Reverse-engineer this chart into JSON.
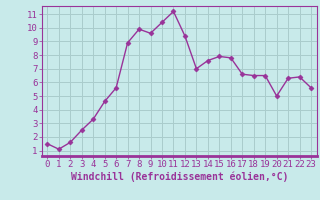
{
  "x": [
    0,
    1,
    2,
    3,
    4,
    5,
    6,
    7,
    8,
    9,
    10,
    11,
    12,
    13,
    14,
    15,
    16,
    17,
    18,
    19,
    20,
    21,
    22,
    23
  ],
  "y": [
    1.5,
    1.1,
    1.6,
    2.5,
    3.3,
    4.6,
    5.6,
    8.9,
    9.9,
    9.6,
    10.4,
    11.2,
    9.4,
    7.0,
    7.6,
    7.9,
    7.8,
    6.6,
    6.5,
    6.5,
    5.0,
    6.3,
    6.4,
    5.6
  ],
  "line_color": "#993399",
  "marker": "D",
  "marker_size": 2.5,
  "bg_color": "#c8eaea",
  "grid_color": "#aacccc",
  "xlabel": "Windchill (Refroidissement éolien,°C)",
  "ylim": [
    0.6,
    11.6
  ],
  "xlim": [
    -0.5,
    23.5
  ],
  "yticks": [
    1,
    2,
    3,
    4,
    5,
    6,
    7,
    8,
    9,
    10,
    11
  ],
  "xticks": [
    0,
    1,
    2,
    3,
    4,
    5,
    6,
    7,
    8,
    9,
    10,
    11,
    12,
    13,
    14,
    15,
    16,
    17,
    18,
    19,
    20,
    21,
    22,
    23
  ],
  "tick_color": "#993399",
  "xlabel_color": "#993399",
  "xlabel_fontsize": 7,
  "tick_fontsize": 6.5,
  "spine_color": "#993399",
  "line_width": 1.0
}
